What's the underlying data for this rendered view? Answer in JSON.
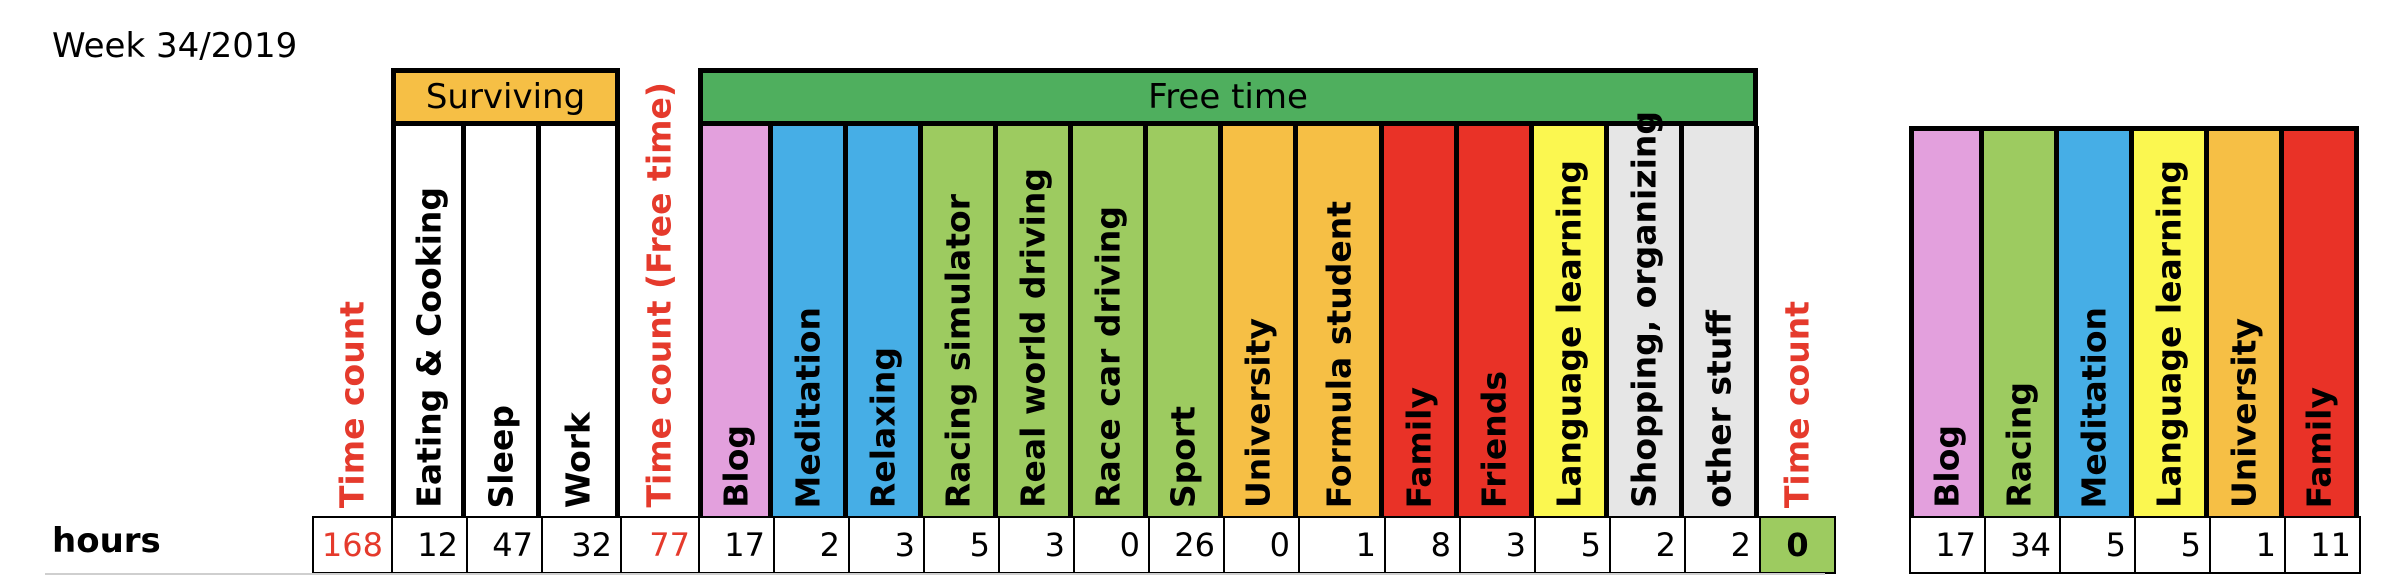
{
  "title": "Week 34/2019",
  "row_label": "hours",
  "groups": {
    "surviving": "Surviving",
    "free_time": "Free time"
  },
  "main_columns": [
    {
      "label": "Time count",
      "value": "168",
      "color": "#ffffff",
      "red": true
    },
    {
      "label": "Eating & Cooking",
      "value": "12",
      "color": "#ffffff"
    },
    {
      "label": "Sleep",
      "value": "47",
      "color": "#ffffff"
    },
    {
      "label": "Work",
      "value": "32",
      "color": "#ffffff"
    },
    {
      "label": "Time count (Free time)",
      "value": "77",
      "color": "#ffffff",
      "red": true
    },
    {
      "label": "Blog",
      "value": "17",
      "color": "#e3a0dd"
    },
    {
      "label": "Meditation",
      "value": "2",
      "color": "#46aee6"
    },
    {
      "label": "Relaxing",
      "value": "3",
      "color": "#46aee6"
    },
    {
      "label": "Racing simulator",
      "value": "5",
      "color": "#9dcb60"
    },
    {
      "label": "Real world driving",
      "value": "3",
      "color": "#9dcb60"
    },
    {
      "label": "Race car driving",
      "value": "0",
      "color": "#9dcb60"
    },
    {
      "label": "Sport",
      "value": "26",
      "color": "#9dcb60"
    },
    {
      "label": "University",
      "value": "0",
      "color": "#f6bf45"
    },
    {
      "label": "Formula student",
      "value": "1",
      "color": "#f6bf45"
    },
    {
      "label": "Family",
      "value": "8",
      "color": "#e93227"
    },
    {
      "label": "Friends",
      "value": "3",
      "color": "#e93227"
    },
    {
      "label": "Language learning",
      "value": "5",
      "color": "#fbf750"
    },
    {
      "label": "Shopping, organizing",
      "value": "2",
      "color": "#e6e6e6"
    },
    {
      "label": "other stuff",
      "value": "2",
      "color": "#e6e6e6"
    },
    {
      "label": "Time count",
      "value": "0",
      "color": "#ffffff",
      "red": true
    }
  ],
  "summary_columns": [
    {
      "label": "Blog",
      "value": "17",
      "color": "#e3a0dd"
    },
    {
      "label": "Racing",
      "value": "34",
      "color": "#9dcb60"
    },
    {
      "label": "Meditation",
      "value": "5",
      "color": "#46aee6"
    },
    {
      "label": "Language learning",
      "value": "5",
      "color": "#fbf750"
    },
    {
      "label": "University",
      "value": "1",
      "color": "#f6bf45"
    },
    {
      "label": "Family",
      "value": "11",
      "color": "#e93227"
    }
  ],
  "colors": {
    "surviving_header": "#f6bf45",
    "free_time_header": "#4faf5e",
    "highlight_cell": "#9dcb60",
    "red_text": "#e53a2c"
  }
}
